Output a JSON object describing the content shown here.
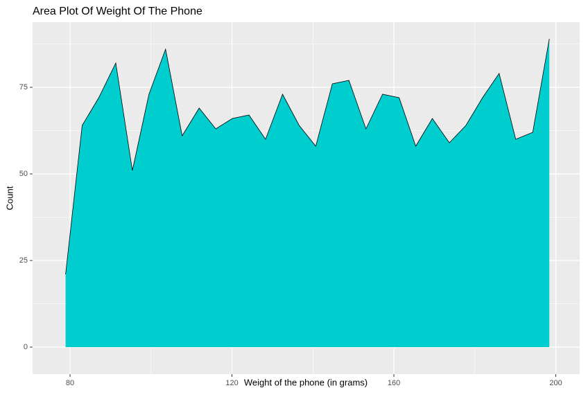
{
  "chart_data": {
    "type": "area",
    "title": "Area Plot Of Weight Of The Phone",
    "x_label": "Weight of the phone (in grams)",
    "y_label": "Count",
    "x": [
      78.9,
      83.0,
      87.1,
      91.3,
      95.4,
      99.5,
      103.6,
      107.7,
      111.9,
      116.0,
      120.1,
      124.2,
      128.3,
      132.5,
      136.6,
      140.7,
      144.8,
      148.9,
      153.1,
      157.2,
      161.3,
      165.4,
      169.5,
      173.7,
      177.8,
      181.9,
      186.0,
      190.1,
      194.3,
      198.4
    ],
    "values": [
      21,
      64,
      72,
      82,
      51,
      73,
      86,
      61,
      69,
      63,
      66,
      67,
      60,
      73,
      64,
      58,
      76,
      77,
      63,
      73,
      72,
      58,
      66,
      59,
      64,
      72,
      79,
      60,
      62,
      89
    ],
    "color": "#00cdcd",
    "xlim": [
      70.75,
      205.9
    ],
    "xticks": [
      80,
      120,
      160,
      200
    ],
    "ylim": [
      -7.8,
      93.8
    ],
    "yticks": [
      0,
      25,
      50,
      75
    ],
    "grid": true
  }
}
